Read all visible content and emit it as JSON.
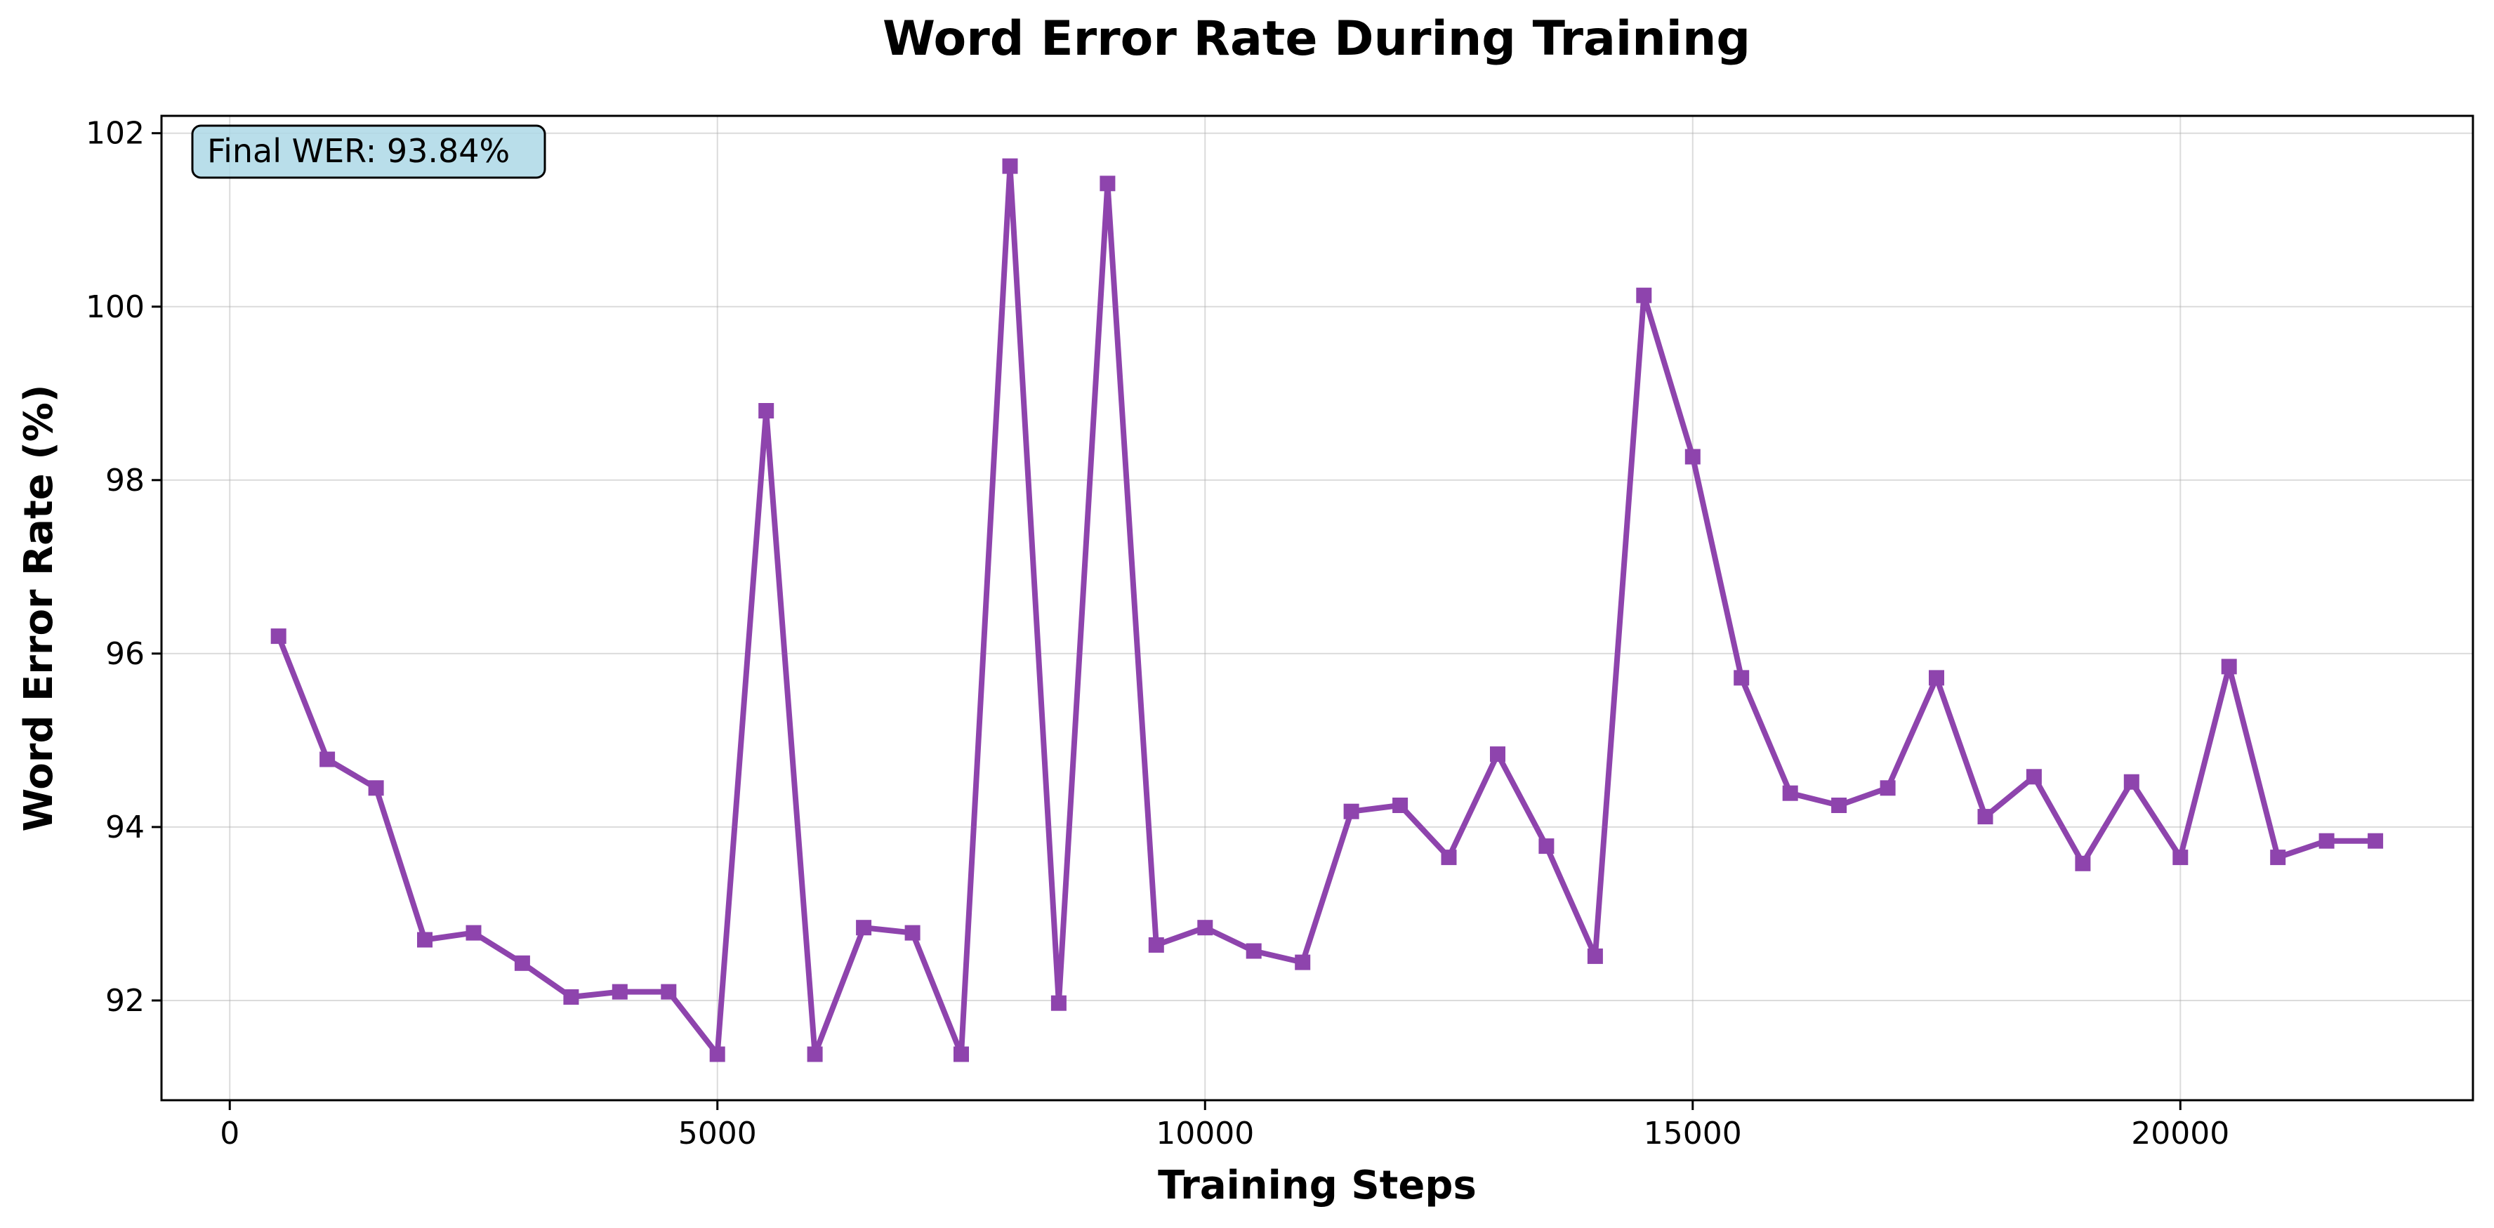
{
  "chart_data": {
    "type": "line",
    "title": "Word Error Rate During Training",
    "xlabel": "Training Steps",
    "ylabel": "Word Error Rate (%)",
    "xlim": [
      -700,
      23000
    ],
    "ylim": [
      90.85,
      102.2
    ],
    "xticks": [
      0,
      5000,
      10000,
      15000,
      20000
    ],
    "yticks": [
      92,
      94,
      96,
      98,
      100,
      102
    ],
    "grid": true,
    "color": "#8e44ad",
    "marker": "square",
    "annotation": {
      "text": "Final WER: 93.84%",
      "position": "top-left",
      "background": "#add8e6"
    },
    "series": [
      {
        "x": [
          500,
          1000,
          1500,
          2000,
          2500,
          3000,
          3500,
          4000,
          4500,
          5000,
          5500,
          6000,
          6500,
          7000,
          7500,
          8000,
          8500,
          9000,
          9500,
          10000,
          10500,
          11000,
          11500,
          12000,
          12500,
          13000,
          13500,
          14000,
          14500,
          15000,
          15500,
          16000,
          16500,
          17000,
          17500,
          18000,
          18500,
          19000,
          19500,
          20000,
          20500,
          21000,
          21500,
          22000
        ],
        "values": [
          96.2,
          94.78,
          94.45,
          92.7,
          92.78,
          92.43,
          92.04,
          92.1,
          92.1,
          91.38,
          98.8,
          91.38,
          92.84,
          92.78,
          91.38,
          101.62,
          91.97,
          101.42,
          92.64,
          92.84,
          92.57,
          92.44,
          94.18,
          94.25,
          93.65,
          94.84,
          93.78,
          92.51,
          100.13,
          98.27,
          95.72,
          94.39,
          94.25,
          94.45,
          95.72,
          94.12,
          94.58,
          93.58,
          94.52,
          93.65,
          95.85,
          93.65,
          93.84,
          93.84
        ]
      }
    ]
  }
}
